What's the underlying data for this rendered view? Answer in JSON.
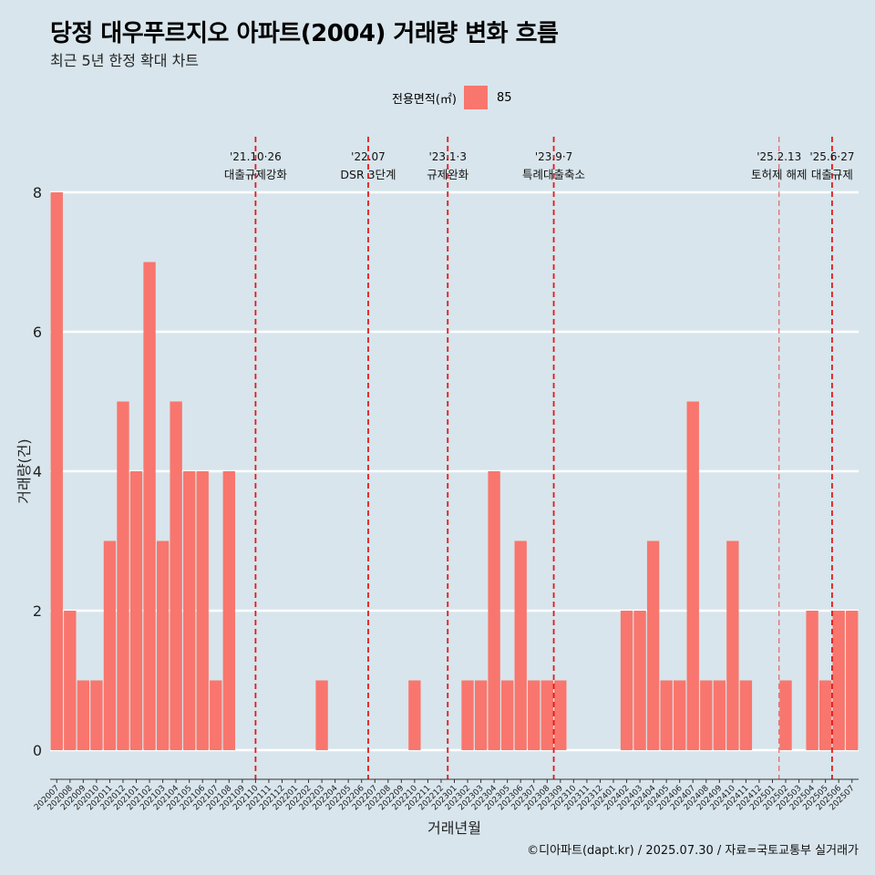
{
  "header": {
    "title": "당정 대우푸르지오 아파트(2004) 거래량 변화 흐름",
    "subtitle": "최근 5년 한정 확대 차트"
  },
  "legend": {
    "title": "전용면적(㎡)",
    "item_label": "85",
    "item_color": "#f8766d"
  },
  "caption": "©디아파트(dapt.kr) / 2025.07.30 / 자료=국토교통부 실거래가",
  "chart_data": {
    "type": "bar",
    "xlabel": "거래년월",
    "ylabel": "거래량(건)",
    "ylim": [
      0,
      8
    ],
    "yticks": [
      0,
      2,
      4,
      6,
      8
    ],
    "grid": "horizontal",
    "legend_position": "top",
    "bar_color": "#f8766d",
    "categories": [
      "202007",
      "202008",
      "202009",
      "202010",
      "202011",
      "202012",
      "202101",
      "202102",
      "202103",
      "202104",
      "202105",
      "202106",
      "202107",
      "202108",
      "202109",
      "202110",
      "202111",
      "202112",
      "202201",
      "202202",
      "202203",
      "202204",
      "202205",
      "202206",
      "202207",
      "202208",
      "202209",
      "202210",
      "202211",
      "202212",
      "202301",
      "202302",
      "202303",
      "202304",
      "202305",
      "202306",
      "202307",
      "202308",
      "202309",
      "202310",
      "202311",
      "202312",
      "202401",
      "202402",
      "202403",
      "202404",
      "202405",
      "202406",
      "202407",
      "202408",
      "202409",
      "202410",
      "202411",
      "202412",
      "202501",
      "202502",
      "202503",
      "202504",
      "202505",
      "202506",
      "202507"
    ],
    "series": [
      {
        "name": "85",
        "values": [
          8,
          2,
          1,
          1,
          3,
          5,
          4,
          7,
          3,
          5,
          4,
          4,
          1,
          4,
          0,
          0,
          0,
          0,
          0,
          0,
          1,
          0,
          0,
          0,
          0,
          0,
          0,
          1,
          0,
          0,
          0,
          1,
          1,
          4,
          1,
          3,
          1,
          1,
          1,
          0,
          0,
          0,
          0,
          2,
          2,
          3,
          1,
          1,
          5,
          1,
          1,
          3,
          1,
          0,
          0,
          1,
          0,
          2,
          1,
          2,
          2
        ]
      }
    ],
    "annotations": [
      {
        "date": "'21.10·26",
        "label": "대출규제강화",
        "x": "202110",
        "x_offset": 0.5,
        "faint": false
      },
      {
        "date": "'22.07",
        "label": "DSR 3단계",
        "x": "202207",
        "x_offset": 0,
        "faint": false
      },
      {
        "date": "'23.1·3",
        "label": "규제완화",
        "x": "202301",
        "x_offset": 0,
        "faint": false
      },
      {
        "date": "'23.9·7",
        "label": "특례대출축소",
        "x": "202309",
        "x_offset": 0,
        "faint": false
      },
      {
        "date": "'25.2.13",
        "label": "토허제 해제",
        "x": "202502",
        "x_offset": 0,
        "faint": true
      },
      {
        "date": "'25.6·27",
        "label": "대출규제",
        "x": "202506",
        "x_offset": 0,
        "faint": false
      }
    ]
  }
}
